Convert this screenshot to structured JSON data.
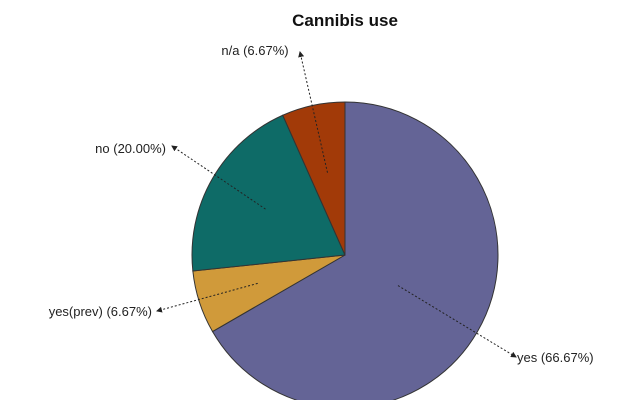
{
  "chart_data": {
    "type": "pie",
    "title": "Cannibis use",
    "slices": [
      {
        "name": "yes",
        "value": 66.67,
        "label": "yes (66.67%)",
        "color": "#646496"
      },
      {
        "name": "yes(prev)",
        "value": 6.67,
        "label": "yes(prev) (6.67%)",
        "color": "#d09a3a"
      },
      {
        "name": "no",
        "value": 20.0,
        "label": "no (20.00%)",
        "color": "#0e6b67"
      },
      {
        "name": "n/a",
        "value": 6.67,
        "label": "n/a (6.67%)",
        "color": "#a23a08"
      }
    ],
    "legend": "none",
    "start_angle": "12 o'clock",
    "direction": "clockwise"
  }
}
